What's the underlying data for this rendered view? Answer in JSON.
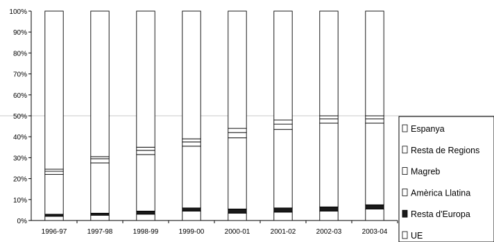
{
  "chart_data": {
    "type": "bar",
    "stacked": true,
    "percent": true,
    "categories": [
      "1996-97",
      "1997-98",
      "1998-99",
      "1999-00",
      "2000-01",
      "2001-02",
      "2002-03",
      "2003-04"
    ],
    "y_ticks": [
      "0%",
      "10%",
      "20%",
      "30%",
      "40%",
      "50%",
      "60%",
      "70%",
      "80%",
      "90%",
      "100%"
    ],
    "ylim": [
      0,
      100
    ],
    "legend_position": "right",
    "stack_order": [
      "UE",
      "Resta d'Europa",
      "Amèrica Llatina",
      "Magreb",
      "Resta de Regions",
      "Espanya"
    ],
    "series": [
      {
        "name": "Espanya",
        "color": "#ffffff",
        "values": [
          75.5,
          69.5,
          65.0,
          61.0,
          56.0,
          52.0,
          50.0,
          50.0
        ]
      },
      {
        "name": "Resta de Regions",
        "color": "#ffffff",
        "values": [
          1.0,
          1.0,
          1.5,
          1.5,
          2.0,
          2.0,
          1.5,
          1.5
        ]
      },
      {
        "name": "Magreb",
        "color": "#ffffff",
        "values": [
          1.5,
          2.0,
          2.0,
          2.0,
          2.5,
          2.5,
          2.0,
          2.0
        ]
      },
      {
        "name": "Amèrica Llatina",
        "color": "#ffffff",
        "values": [
          19.0,
          24.0,
          27.0,
          29.5,
          34.0,
          37.5,
          40.0,
          39.0
        ]
      },
      {
        "name": "Resta d'Europa",
        "color": "#1a1a1a",
        "values": [
          1.0,
          1.0,
          1.5,
          1.5,
          2.0,
          2.0,
          2.0,
          2.0
        ]
      },
      {
        "name": "UE",
        "color": "#ffffff",
        "values": [
          2.0,
          2.5,
          3.0,
          4.5,
          3.5,
          4.0,
          4.5,
          5.5
        ]
      }
    ],
    "legend": [
      {
        "label": "Espanya",
        "marker": "open"
      },
      {
        "label": "Resta de Regions",
        "marker": "open"
      },
      {
        "label": "Magreb",
        "marker": "open"
      },
      {
        "label": "Amèrica Llatina",
        "marker": "open"
      },
      {
        "label": "Resta d'Europa",
        "marker": "filled"
      },
      {
        "label": "UE",
        "marker": "open"
      }
    ]
  }
}
